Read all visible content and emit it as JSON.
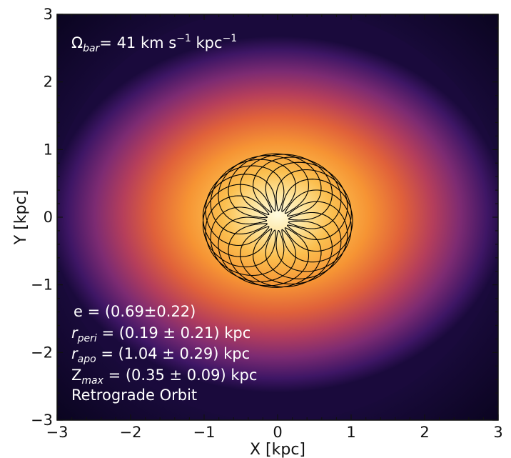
{
  "chart_data": {
    "type": "scatter",
    "plot_kind": "density map with overlaid orbit trajectory",
    "colormap": "inferno",
    "grid": false,
    "xlabel": "X [kpc]",
    "ylabel": "Y [kpc]",
    "xlim": [
      -3,
      3
    ],
    "ylim": [
      -3,
      3
    ],
    "x_ticks": [
      -3,
      -2,
      -1,
      0,
      1,
      2,
      3
    ],
    "y_ticks": [
      -3,
      -2,
      -1,
      0,
      1,
      2,
      3
    ],
    "x_tick_labels": [
      "−3",
      "−2",
      "−1",
      "0",
      "1",
      "2",
      "3"
    ],
    "y_tick_labels": [
      "−3",
      "−2",
      "−1",
      "0",
      "1",
      "2",
      "3"
    ],
    "orbit": {
      "color": "#000000",
      "center": [
        0,
        -0.05
      ],
      "r_inner": 0.15,
      "r_outer": 1.02,
      "rosette_loops": 19
    },
    "annotations": {
      "omega_symbol": "Ω",
      "omega_subscript": "bar",
      "omega_value": "=   41 km  s",
      "omega_exp1": "−1",
      "omega_unit2": "  kpc",
      "omega_exp2": "−1",
      "e_line": "e  =  (0.69±0.22)",
      "rperi_symbol": "r",
      "rperi_sub": "peri",
      "rperi_value": " = (0.19 ± 0.21) kpc",
      "rapo_symbol": "r",
      "rapo_sub": "apo",
      "rapo_value": " = (1.04 ± 0.29) kpc",
      "zmax_symbol": "Z",
      "zmax_sub": "max",
      "zmax_value": " = (0.35 ± 0.09) kpc",
      "orbit_type": "Retrograde Orbit"
    }
  }
}
